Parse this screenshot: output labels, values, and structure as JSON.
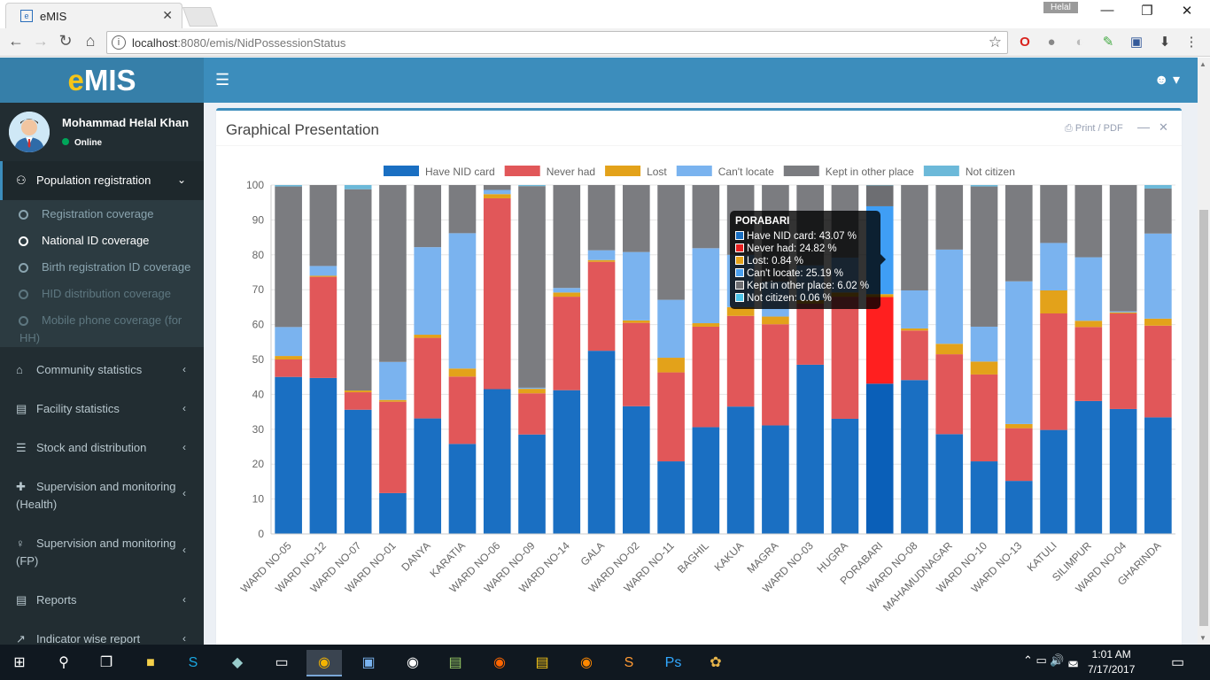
{
  "browser": {
    "tab_title": "eMIS",
    "tab_close": "✕",
    "user_label": "Helal",
    "url_host": "localhost",
    "url_path": ":8080/emis/NidPossessionStatus"
  },
  "app": {
    "logo_e": "e",
    "logo_rest": "MIS",
    "user_name": "Mohammad Helal Khan",
    "user_status": "Online"
  },
  "sidebar": {
    "active_menu": "Population registration",
    "submenu": [
      "Registration coverage",
      "National ID coverage",
      "Birth registration ID coverage",
      "HID distribution coverage",
      "Mobile phone coverage (for",
      "HH)"
    ],
    "menus": [
      "Community statistics",
      "Facility statistics",
      "Stock and distribution",
      "Supervision and monitoring",
      "(Health)",
      "Supervision and monitoring",
      "(FP)",
      "Reports",
      "Indicator wise report"
    ]
  },
  "box": {
    "title": "Graphical Presentation",
    "print_label": "Print / PDF"
  },
  "chart_data": {
    "type": "bar",
    "stacked": true,
    "ylim": [
      0,
      100
    ],
    "yticks": [
      "0",
      "10",
      "20",
      "30",
      "40",
      "50",
      "60",
      "70",
      "80",
      "90",
      "100"
    ],
    "legend_position": "top",
    "grid": true,
    "categories": [
      "WARD NO-05",
      "WARD NO-12",
      "WARD NO-07",
      "WARD NO-01",
      "DANYA",
      "KARATIA",
      "WARD NO-06",
      "WARD NO-09",
      "WARD NO-14",
      "GALA",
      "WARD NO-02",
      "WARD NO-11",
      "BAGHIL",
      "KAKUA",
      "MAGRA",
      "WARD NO-03",
      "HUGRA",
      "PORABARI",
      "WARD NO-08",
      "MAHAMUDNAGAR",
      "WARD NO-10",
      "WARD NO-13",
      "KATULI",
      "SILIMPUR",
      "WARD NO-04",
      "GHARINDA"
    ],
    "series": [
      {
        "name": "Have NID card",
        "color": "#1a6fc2",
        "values": [
          45.0,
          44.7,
          35.6,
          11.7,
          33.1,
          25.8,
          41.5,
          28.5,
          41.2,
          52.5,
          36.6,
          20.8,
          30.6,
          36.5,
          31.1,
          48.5,
          33.0,
          43.07,
          44.1,
          28.6,
          20.8,
          15.2,
          29.8,
          38.1,
          35.8,
          33.4
        ]
      },
      {
        "name": "Never had",
        "color": "#e15759",
        "values": [
          5.0,
          29.0,
          5.0,
          26.2,
          23.1,
          19.3,
          54.7,
          11.8,
          26.8,
          25.5,
          23.9,
          25.5,
          28.8,
          26.0,
          29.0,
          17.5,
          35.0,
          24.82,
          14.2,
          22.9,
          24.9,
          15.1,
          33.4,
          21.2,
          27.4,
          26.3
        ]
      },
      {
        "name": "Lost",
        "color": "#e3a21a",
        "values": [
          1.0,
          0.3,
          0.5,
          0.5,
          0.9,
          2.3,
          1.2,
          1.3,
          1.2,
          0.5,
          0.7,
          4.2,
          1.0,
          2.5,
          2.2,
          1.0,
          1.2,
          0.84,
          0.6,
          3.0,
          3.7,
          1.2,
          6.6,
          1.8,
          0.3,
          2.0
        ]
      },
      {
        "name": "Can't locate",
        "color": "#7ab3ef",
        "values": [
          8.3,
          2.8,
          0.0,
          10.9,
          25.1,
          38.8,
          1.2,
          0.3,
          1.3,
          2.8,
          19.6,
          16.6,
          21.5,
          15.0,
          10.0,
          10.0,
          10.0,
          25.19,
          10.9,
          27.0,
          10.0,
          40.9,
          13.6,
          18.2,
          0.3,
          24.4
        ]
      },
      {
        "name": "Kept in other place",
        "color": "#7b7c80",
        "values": [
          40.3,
          23.2,
          57.7,
          50.7,
          17.8,
          13.8,
          1.4,
          57.8,
          29.5,
          18.7,
          19.2,
          32.9,
          18.1,
          20.0,
          27.7,
          23.0,
          20.8,
          6.02,
          30.2,
          18.5,
          40.2,
          27.6,
          16.6,
          20.7,
          36.2,
          12.9
        ]
      },
      {
        "name": "Not citizen",
        "color": "#6cb9d9",
        "values": [
          0.4,
          0.0,
          1.2,
          0.0,
          0.0,
          0.0,
          0.0,
          0.3,
          0.0,
          0.0,
          0.0,
          0.0,
          0.0,
          0.0,
          0.0,
          0.0,
          0.0,
          0.06,
          0.0,
          0.0,
          0.4,
          0.0,
          0.0,
          0.0,
          0.0,
          1.0
        ]
      }
    ],
    "highlight_index": 17,
    "tooltip": {
      "title": "PORABARI",
      "rows": [
        "Have NID card: 43.07 %",
        "Never had: 24.82 %",
        "Lost: 0.84 %",
        "Can't locate: 25.19 %",
        "Kept in other place: 6.02 %",
        "Not citizen: 0.06 %"
      ]
    }
  },
  "taskbar": {
    "time": "1:01 AM",
    "date": "7/17/2017"
  }
}
